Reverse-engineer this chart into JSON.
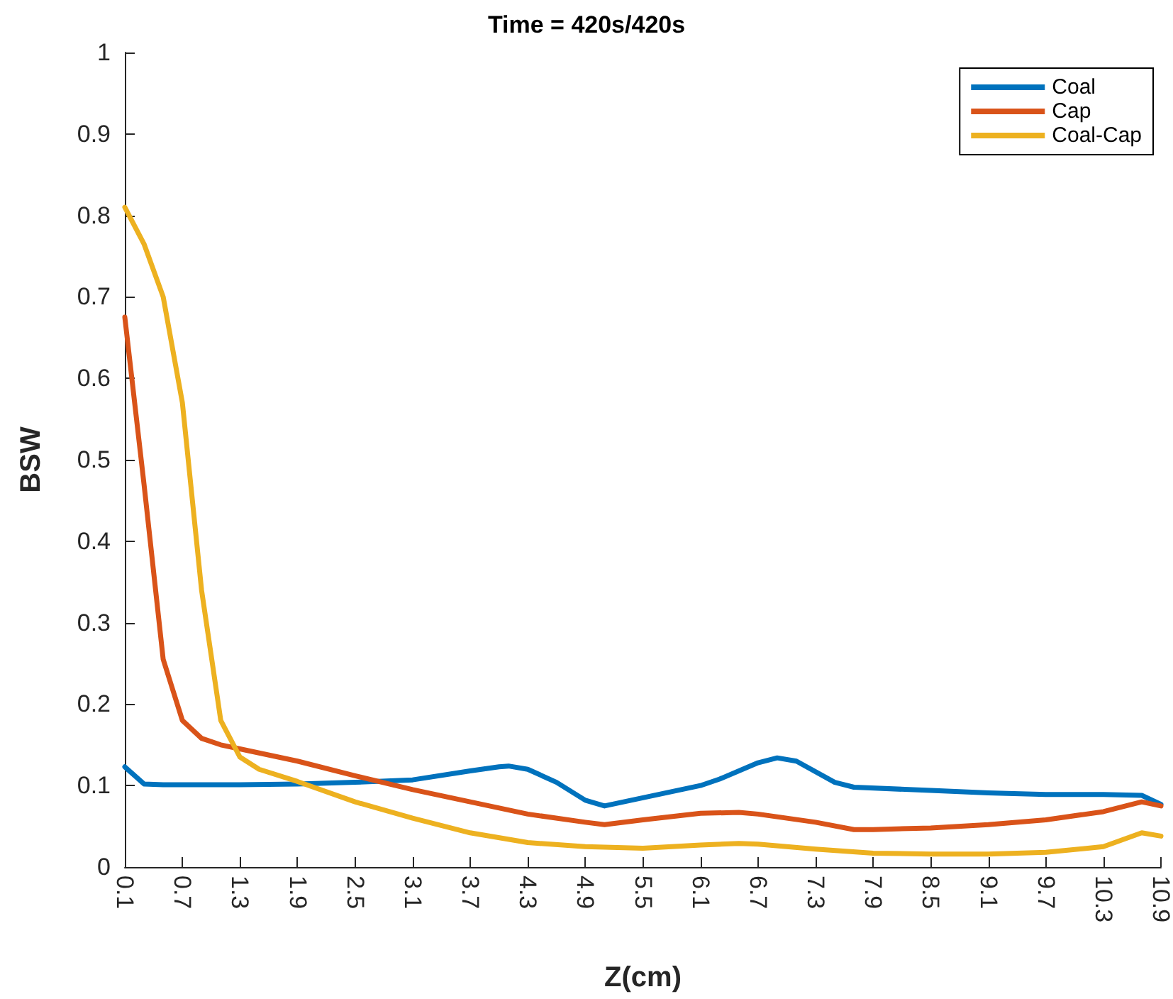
{
  "chart_data": {
    "type": "line",
    "title": "Time = 420s/420s",
    "xlabel": "Z(cm)",
    "ylabel": "BSW",
    "xlim": [
      0.1,
      10.9
    ],
    "xticks": [
      0.1,
      0.7,
      1.3,
      1.9,
      2.5,
      3.1,
      3.7,
      4.3,
      4.9,
      5.5,
      6.1,
      6.7,
      7.3,
      7.9,
      8.5,
      9.1,
      9.7,
      10.3,
      10.9
    ],
    "ylim": [
      0,
      1
    ],
    "yticks": [
      0,
      0.1,
      0.2,
      0.3,
      0.4,
      0.5,
      0.6,
      0.7,
      0.8,
      0.9,
      1
    ],
    "grid": false,
    "legend": "top right",
    "marker": "none",
    "line_style": "solid",
    "series": [
      {
        "name": "Coal",
        "color": "#0072bd",
        "x": [
          0.1,
          0.3,
          0.5,
          1.3,
          1.9,
          2.5,
          3.1,
          3.7,
          4.0,
          4.1,
          4.3,
          4.6,
          4.9,
          5.1,
          5.5,
          6.1,
          6.3,
          6.7,
          6.9,
          7.1,
          7.5,
          7.7,
          8.5,
          9.1,
          9.7,
          10.3,
          10.7,
          10.9
        ],
        "values": [
          0.123,
          0.102,
          0.101,
          0.101,
          0.102,
          0.104,
          0.107,
          0.118,
          0.123,
          0.124,
          0.12,
          0.104,
          0.082,
          0.075,
          0.085,
          0.1,
          0.108,
          0.128,
          0.134,
          0.13,
          0.104,
          0.098,
          0.094,
          0.091,
          0.089,
          0.089,
          0.088,
          0.077
        ]
      },
      {
        "name": "Cap",
        "color": "#d95319",
        "x": [
          0.1,
          0.3,
          0.5,
          0.7,
          0.9,
          1.1,
          1.3,
          1.5,
          1.9,
          2.5,
          3.1,
          3.7,
          4.3,
          4.9,
          5.1,
          5.5,
          6.1,
          6.5,
          6.7,
          7.3,
          7.7,
          7.9,
          8.5,
          9.1,
          9.7,
          10.3,
          10.7,
          10.9
        ],
        "values": [
          0.675,
          0.47,
          0.255,
          0.18,
          0.158,
          0.15,
          0.145,
          0.14,
          0.13,
          0.112,
          0.095,
          0.08,
          0.065,
          0.055,
          0.052,
          0.058,
          0.066,
          0.067,
          0.065,
          0.055,
          0.046,
          0.046,
          0.048,
          0.052,
          0.058,
          0.068,
          0.08,
          0.075
        ]
      },
      {
        "name": "Coal-Cap",
        "color": "#edb120",
        "x": [
          0.1,
          0.3,
          0.5,
          0.7,
          0.9,
          1.1,
          1.3,
          1.5,
          1.9,
          2.5,
          3.1,
          3.7,
          4.3,
          4.9,
          5.5,
          6.1,
          6.5,
          6.7,
          7.3,
          7.9,
          8.5,
          9.1,
          9.7,
          10.3,
          10.7,
          10.9
        ],
        "values": [
          0.81,
          0.765,
          0.7,
          0.57,
          0.34,
          0.18,
          0.135,
          0.12,
          0.105,
          0.08,
          0.06,
          0.042,
          0.03,
          0.025,
          0.023,
          0.027,
          0.029,
          0.028,
          0.022,
          0.017,
          0.016,
          0.016,
          0.018,
          0.025,
          0.042,
          0.038
        ]
      }
    ]
  }
}
